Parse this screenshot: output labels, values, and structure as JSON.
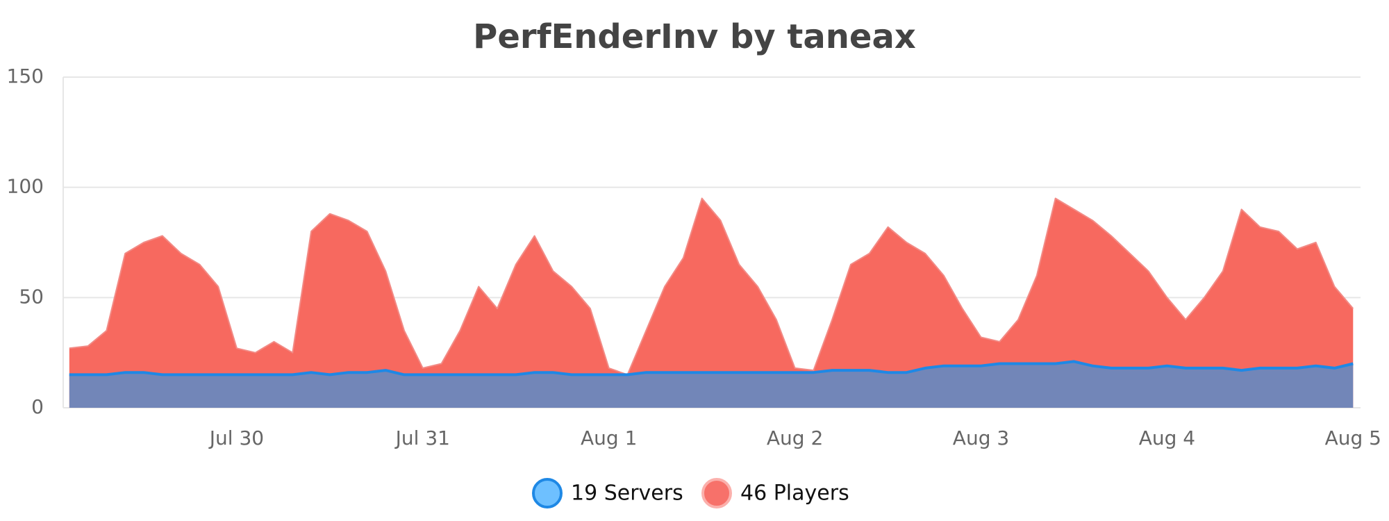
{
  "chart_data": {
    "type": "area",
    "title": "PerfEnderInv by taneax",
    "x": [
      29.1,
      29.2,
      29.3,
      29.4,
      29.5,
      29.6,
      29.7,
      29.8,
      29.9,
      30.0,
      30.1,
      30.2,
      30.3,
      30.4,
      30.5,
      30.6,
      30.7,
      30.8,
      30.9,
      31.0,
      31.1,
      31.2,
      31.3,
      31.4,
      31.5,
      31.6,
      31.7,
      31.8,
      31.9,
      32.0,
      32.1,
      32.2,
      32.3,
      32.4,
      32.5,
      32.6,
      32.7,
      32.8,
      32.9,
      33.0,
      33.1,
      33.2,
      33.3,
      33.4,
      33.5,
      33.6,
      33.7,
      33.8,
      33.9,
      34.0,
      34.1,
      34.2,
      34.3,
      34.4,
      34.5,
      34.6,
      34.7,
      34.8,
      34.9,
      35.0,
      35.1,
      35.2,
      35.3,
      35.4,
      35.5,
      35.6,
      35.7,
      35.8,
      35.9,
      36.0
    ],
    "series": [
      {
        "name": "46 Players",
        "color": "#f7695f",
        "line_color": "#f28a85",
        "values": [
          27,
          28,
          35,
          70,
          75,
          78,
          70,
          65,
          55,
          27,
          25,
          30,
          25,
          80,
          88,
          85,
          80,
          62,
          35,
          18,
          20,
          35,
          55,
          45,
          65,
          78,
          62,
          55,
          45,
          18,
          15,
          35,
          55,
          68,
          95,
          85,
          65,
          55,
          40,
          18,
          17,
          40,
          65,
          70,
          82,
          75,
          70,
          60,
          45,
          32,
          30,
          40,
          60,
          95,
          90,
          85,
          78,
          70,
          62,
          50,
          40,
          50,
          62,
          90,
          82,
          80,
          72,
          75,
          55,
          45
        ]
      },
      {
        "name": "19 Servers",
        "color": "#7286b8",
        "line_color": "#1e88e5",
        "values": [
          15,
          15,
          15,
          16,
          16,
          15,
          15,
          15,
          15,
          15,
          15,
          15,
          15,
          16,
          15,
          16,
          16,
          17,
          15,
          15,
          15,
          15,
          15,
          15,
          15,
          16,
          16,
          15,
          15,
          15,
          15,
          16,
          16,
          16,
          16,
          16,
          16,
          16,
          16,
          16,
          16,
          17,
          17,
          17,
          16,
          16,
          18,
          19,
          19,
          19,
          20,
          20,
          20,
          20,
          21,
          19,
          18,
          18,
          18,
          19,
          18,
          18,
          18,
          17,
          18,
          18,
          18,
          19,
          18,
          20
        ]
      }
    ],
    "legend_order": [
      1,
      0
    ],
    "xlim": [
      29.067,
      36.04
    ],
    "xticks": [
      {
        "value": 30,
        "label": "Jul 30"
      },
      {
        "value": 31,
        "label": "Jul 31"
      },
      {
        "value": 32,
        "label": "Aug 1"
      },
      {
        "value": 33,
        "label": "Aug 2"
      },
      {
        "value": 34,
        "label": "Aug 3"
      },
      {
        "value": 35,
        "label": "Aug 4"
      },
      {
        "value": 36,
        "label": "Aug 5"
      }
    ],
    "ylim": [
      0,
      150
    ],
    "yticks": [
      0,
      50,
      100,
      150
    ],
    "grid": true
  }
}
